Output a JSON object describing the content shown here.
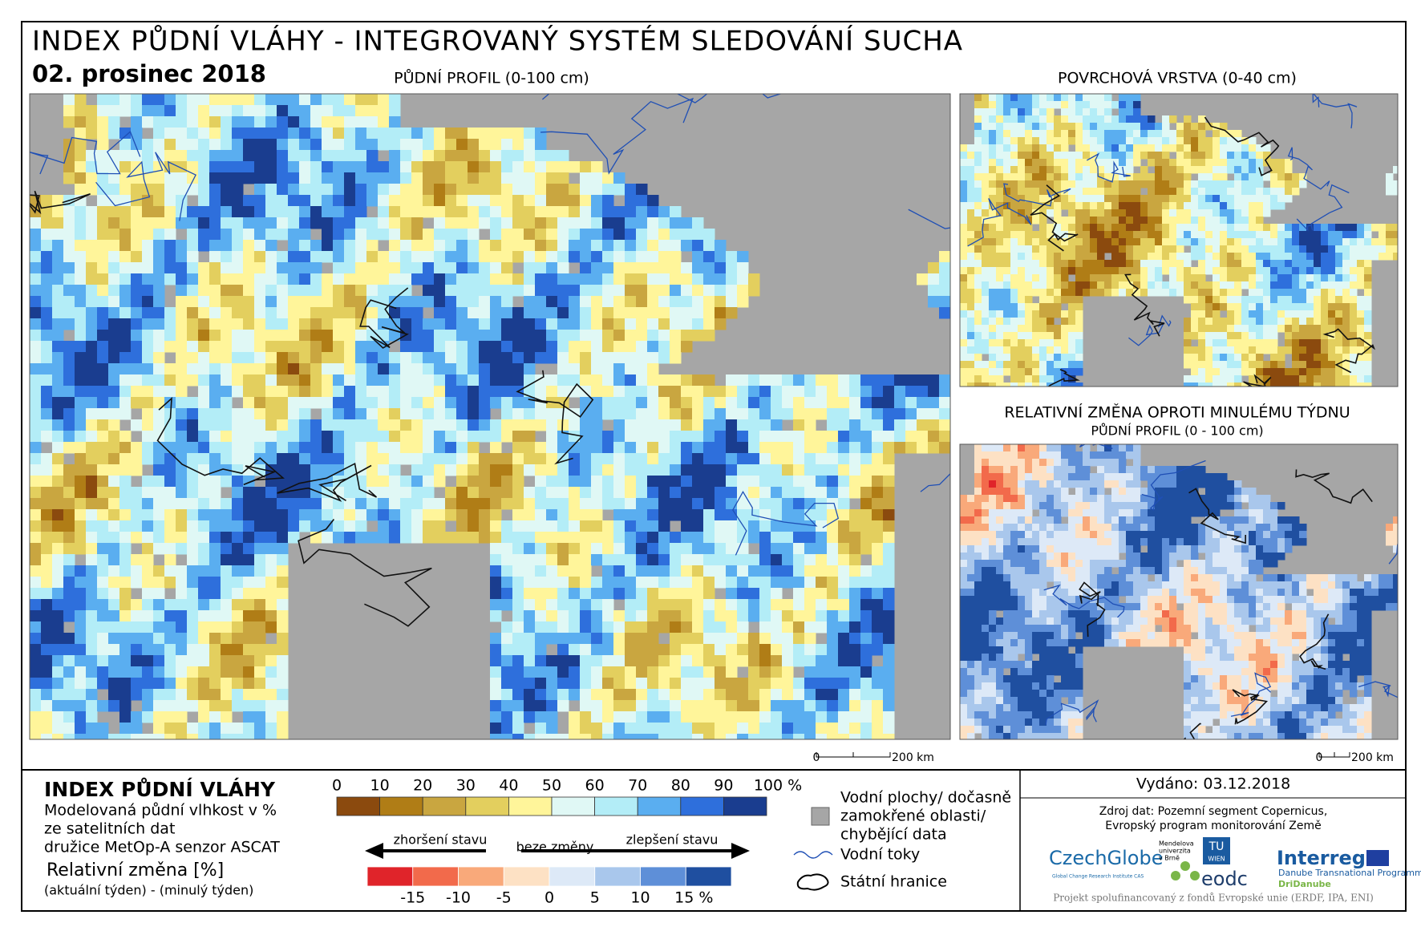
{
  "header": {
    "title": "INDEX PŮDNÍ VLÁHY - INTEGROVANÝ SYSTÉM SLEDOVÁNÍ SUCHA",
    "date": "02. prosinec 2018"
  },
  "maps": [
    {
      "title": "PŮDNÍ PROFIL (0-100 cm)",
      "scale": [
        "0",
        "200 km"
      ]
    },
    {
      "title": "POVRCHOVÁ VRSTVA (0-40 cm)"
    },
    {
      "title": "RELATIVNÍ ZMĚNA OPROTI MINULÉMU TÝDNU",
      "subtitle": "PŮDNÍ PROFIL (0 - 100 cm)",
      "scale": [
        "0",
        "200 km"
      ]
    }
  ],
  "legend": {
    "title": "INDEX PŮDNÍ VLÁHY",
    "description": [
      "Modelovaná půdní vlhkost v %",
      "ze satelitních dat",
      "družice MetOp-A senzor ASCAT"
    ],
    "change_title": "Relativní změna [%]",
    "change_description": "(aktuální týden) - (minulý týden)",
    "index_labels": [
      "0",
      "10",
      "20",
      "30",
      "40",
      "50",
      "60",
      "70",
      "80",
      "90",
      "100 %"
    ],
    "arrow_left": "zhoršení stavu",
    "arrow_center": "beze změny",
    "arrow_right": "zlepšení stavu",
    "change_labels": [
      "-15",
      "-10",
      "-5",
      "0",
      "5",
      "10",
      "15 %"
    ],
    "water": [
      "Vodní plochy/ dočasně",
      "zamokřené oblasti/",
      "chybějící data"
    ],
    "rivers": "Vodní toky",
    "borders": "Státní hranice"
  },
  "issued": "Vydáno: 03.12.2018",
  "source": [
    "Zdroj dat: Pozemní segment Copernicus,",
    "Evropský program monitorování Země"
  ],
  "logos": {
    "czechglobe": "CzechGlobe",
    "czechglobe_sub": "Global Change Research Institute CAS",
    "mendel": [
      "Mendelova",
      "univerzita",
      "v Brně"
    ],
    "tu": [
      "TU",
      "WIEN"
    ],
    "eodc": "eodc",
    "interreg": "Interreg",
    "programme": "Danube Transnational Programme",
    "project": "DriDanube"
  },
  "footer": "Projekt spolufinancovaný z fondů Evropské unie (ERDF, IPA, ENI)"
}
